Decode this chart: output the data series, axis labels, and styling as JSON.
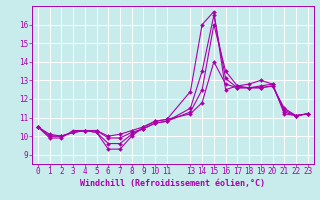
{
  "background_color": "#c8ecec",
  "grid_color": "#ffffff",
  "line_color": "#aa00aa",
  "xlabel": "Windchill (Refroidissement éolien,°C)",
  "xlim": [
    -0.5,
    23.5
  ],
  "ylim": [
    8.5,
    17.0
  ],
  "xticks": [
    0,
    1,
    2,
    3,
    4,
    5,
    6,
    7,
    8,
    9,
    10,
    11,
    13,
    14,
    15,
    16,
    17,
    18,
    19,
    20,
    21,
    22,
    23
  ],
  "yticks": [
    9,
    10,
    11,
    12,
    13,
    14,
    15,
    16
  ],
  "series": [
    {
      "x": [
        0,
        1,
        2,
        3,
        4,
        5,
        6,
        7,
        8,
        9,
        10,
        11,
        13,
        14,
        15,
        16,
        17,
        18,
        19,
        20,
        21,
        22,
        23
      ],
      "y": [
        10.5,
        9.9,
        9.9,
        10.3,
        10.3,
        10.2,
        9.3,
        9.3,
        10.0,
        10.5,
        10.8,
        10.9,
        12.4,
        16.0,
        16.7,
        12.5,
        12.7,
        12.8,
        13.0,
        12.8,
        11.2,
        11.1,
        11.2
      ]
    },
    {
      "x": [
        0,
        1,
        2,
        3,
        4,
        5,
        6,
        7,
        8,
        9,
        10,
        11,
        13,
        14,
        15,
        16,
        17,
        18,
        19,
        20,
        21,
        22,
        23
      ],
      "y": [
        10.5,
        10.0,
        10.0,
        10.2,
        10.3,
        10.2,
        9.6,
        9.6,
        10.1,
        10.4,
        10.7,
        10.8,
        11.5,
        13.5,
        16.5,
        13.1,
        12.6,
        12.6,
        12.7,
        12.8,
        11.3,
        11.1,
        11.2
      ]
    },
    {
      "x": [
        0,
        1,
        2,
        3,
        4,
        5,
        6,
        7,
        8,
        9,
        10,
        11,
        13,
        14,
        15,
        16,
        17,
        18,
        19,
        20,
        21,
        22,
        23
      ],
      "y": [
        10.5,
        10.0,
        10.0,
        10.2,
        10.3,
        10.3,
        9.9,
        9.9,
        10.2,
        10.4,
        10.7,
        10.8,
        11.3,
        12.5,
        16.0,
        13.5,
        12.7,
        12.6,
        12.6,
        12.7,
        11.4,
        11.1,
        11.2
      ]
    },
    {
      "x": [
        0,
        1,
        2,
        3,
        4,
        5,
        6,
        7,
        8,
        9,
        10,
        11,
        13,
        14,
        15,
        16,
        17,
        18,
        19,
        20,
        21,
        22,
        23
      ],
      "y": [
        10.5,
        10.1,
        10.0,
        10.2,
        10.3,
        10.3,
        10.0,
        10.1,
        10.3,
        10.5,
        10.8,
        10.9,
        11.2,
        11.8,
        14.0,
        12.8,
        12.6,
        12.6,
        12.6,
        12.7,
        11.5,
        11.1,
        11.2
      ]
    }
  ],
  "tick_fontsize": 5.5,
  "label_fontsize": 6.0,
  "linewidth": 0.8,
  "markersize": 2.0
}
